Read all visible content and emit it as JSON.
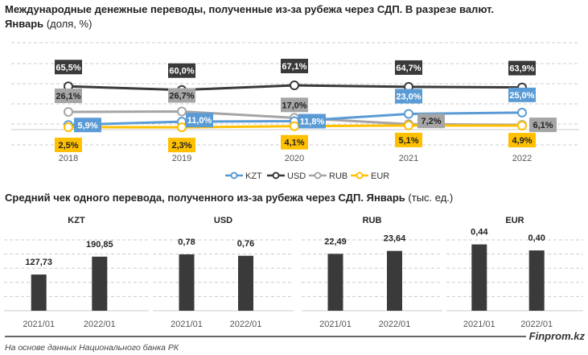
{
  "chart_data": [
    {
      "type": "line",
      "title": "Международные денежные переводы, полученные из-за рубежа через СДП. В разрезе валют.",
      "subtitle_bold": "Январь",
      "subtitle_unit": "(доля, %)",
      "x": [
        "2018",
        "2019",
        "2020",
        "2021",
        "2022"
      ],
      "ylim": [
        0,
        70
      ],
      "grid": true,
      "legend_placement": "bottom",
      "series": [
        {
          "name": "KZT",
          "color": "#5b9bd5",
          "values": [
            5.9,
            11.0,
            11.8,
            23.0,
            25.0
          ],
          "labels": [
            "5,9%",
            "11,0%",
            "11,8%",
            "23,0%",
            "25,0%"
          ]
        },
        {
          "name": "USD",
          "color": "#3a3a3a",
          "values": [
            65.5,
            60.0,
            67.1,
            64.7,
            63.9
          ],
          "labels": [
            "65,5%",
            "60,0%",
            "67,1%",
            "64,7%",
            "63,9%"
          ]
        },
        {
          "name": "RUB",
          "color": "#a5a5a5",
          "values": [
            26.1,
            26.7,
            17.0,
            7.2,
            6.1
          ],
          "labels": [
            "26,1%",
            "26,7%",
            "17,0%",
            "7,2%",
            "6,1%"
          ]
        },
        {
          "name": "EUR",
          "color": "#ffc000",
          "values": [
            2.5,
            2.3,
            4.1,
            5.1,
            4.9
          ],
          "labels": [
            "2,5%",
            "2,3%",
            "4,1%",
            "5,1%",
            "4,9%"
          ]
        }
      ]
    },
    {
      "type": "bar",
      "title": "Средний чек одного перевода, полученного из-за рубежа через СДП. Январь",
      "title_unit": "(тыс. ед.)",
      "color": "#3a3a3a",
      "grid": true,
      "panels": [
        {
          "name": "KZT",
          "categories": [
            "2021/01",
            "2022/01"
          ],
          "values": [
            127.73,
            190.85
          ],
          "labels": [
            "127,73",
            "190,85"
          ],
          "ylim": [
            0,
            250
          ]
        },
        {
          "name": "USD",
          "categories": [
            "2021/01",
            "2022/01"
          ],
          "values": [
            0.78,
            0.76
          ],
          "labels": [
            "0,78",
            "0,76"
          ],
          "ylim": [
            0,
            0.98
          ]
        },
        {
          "name": "RUB",
          "categories": [
            "2021/01",
            "2022/01"
          ],
          "values": [
            22.49,
            23.64
          ],
          "labels": [
            "22,49",
            "23,64"
          ],
          "ylim": [
            0,
            28
          ]
        },
        {
          "name": "EUR",
          "categories": [
            "2021/01",
            "2022/01"
          ],
          "values": [
            0.44,
            0.4
          ],
          "labels": [
            "0,44",
            "0,40"
          ],
          "ylim": [
            0,
            0.47
          ]
        }
      ]
    }
  ],
  "footer": {
    "source": "На основе данных Национального банка РК",
    "brand": "Finprom.kz"
  }
}
